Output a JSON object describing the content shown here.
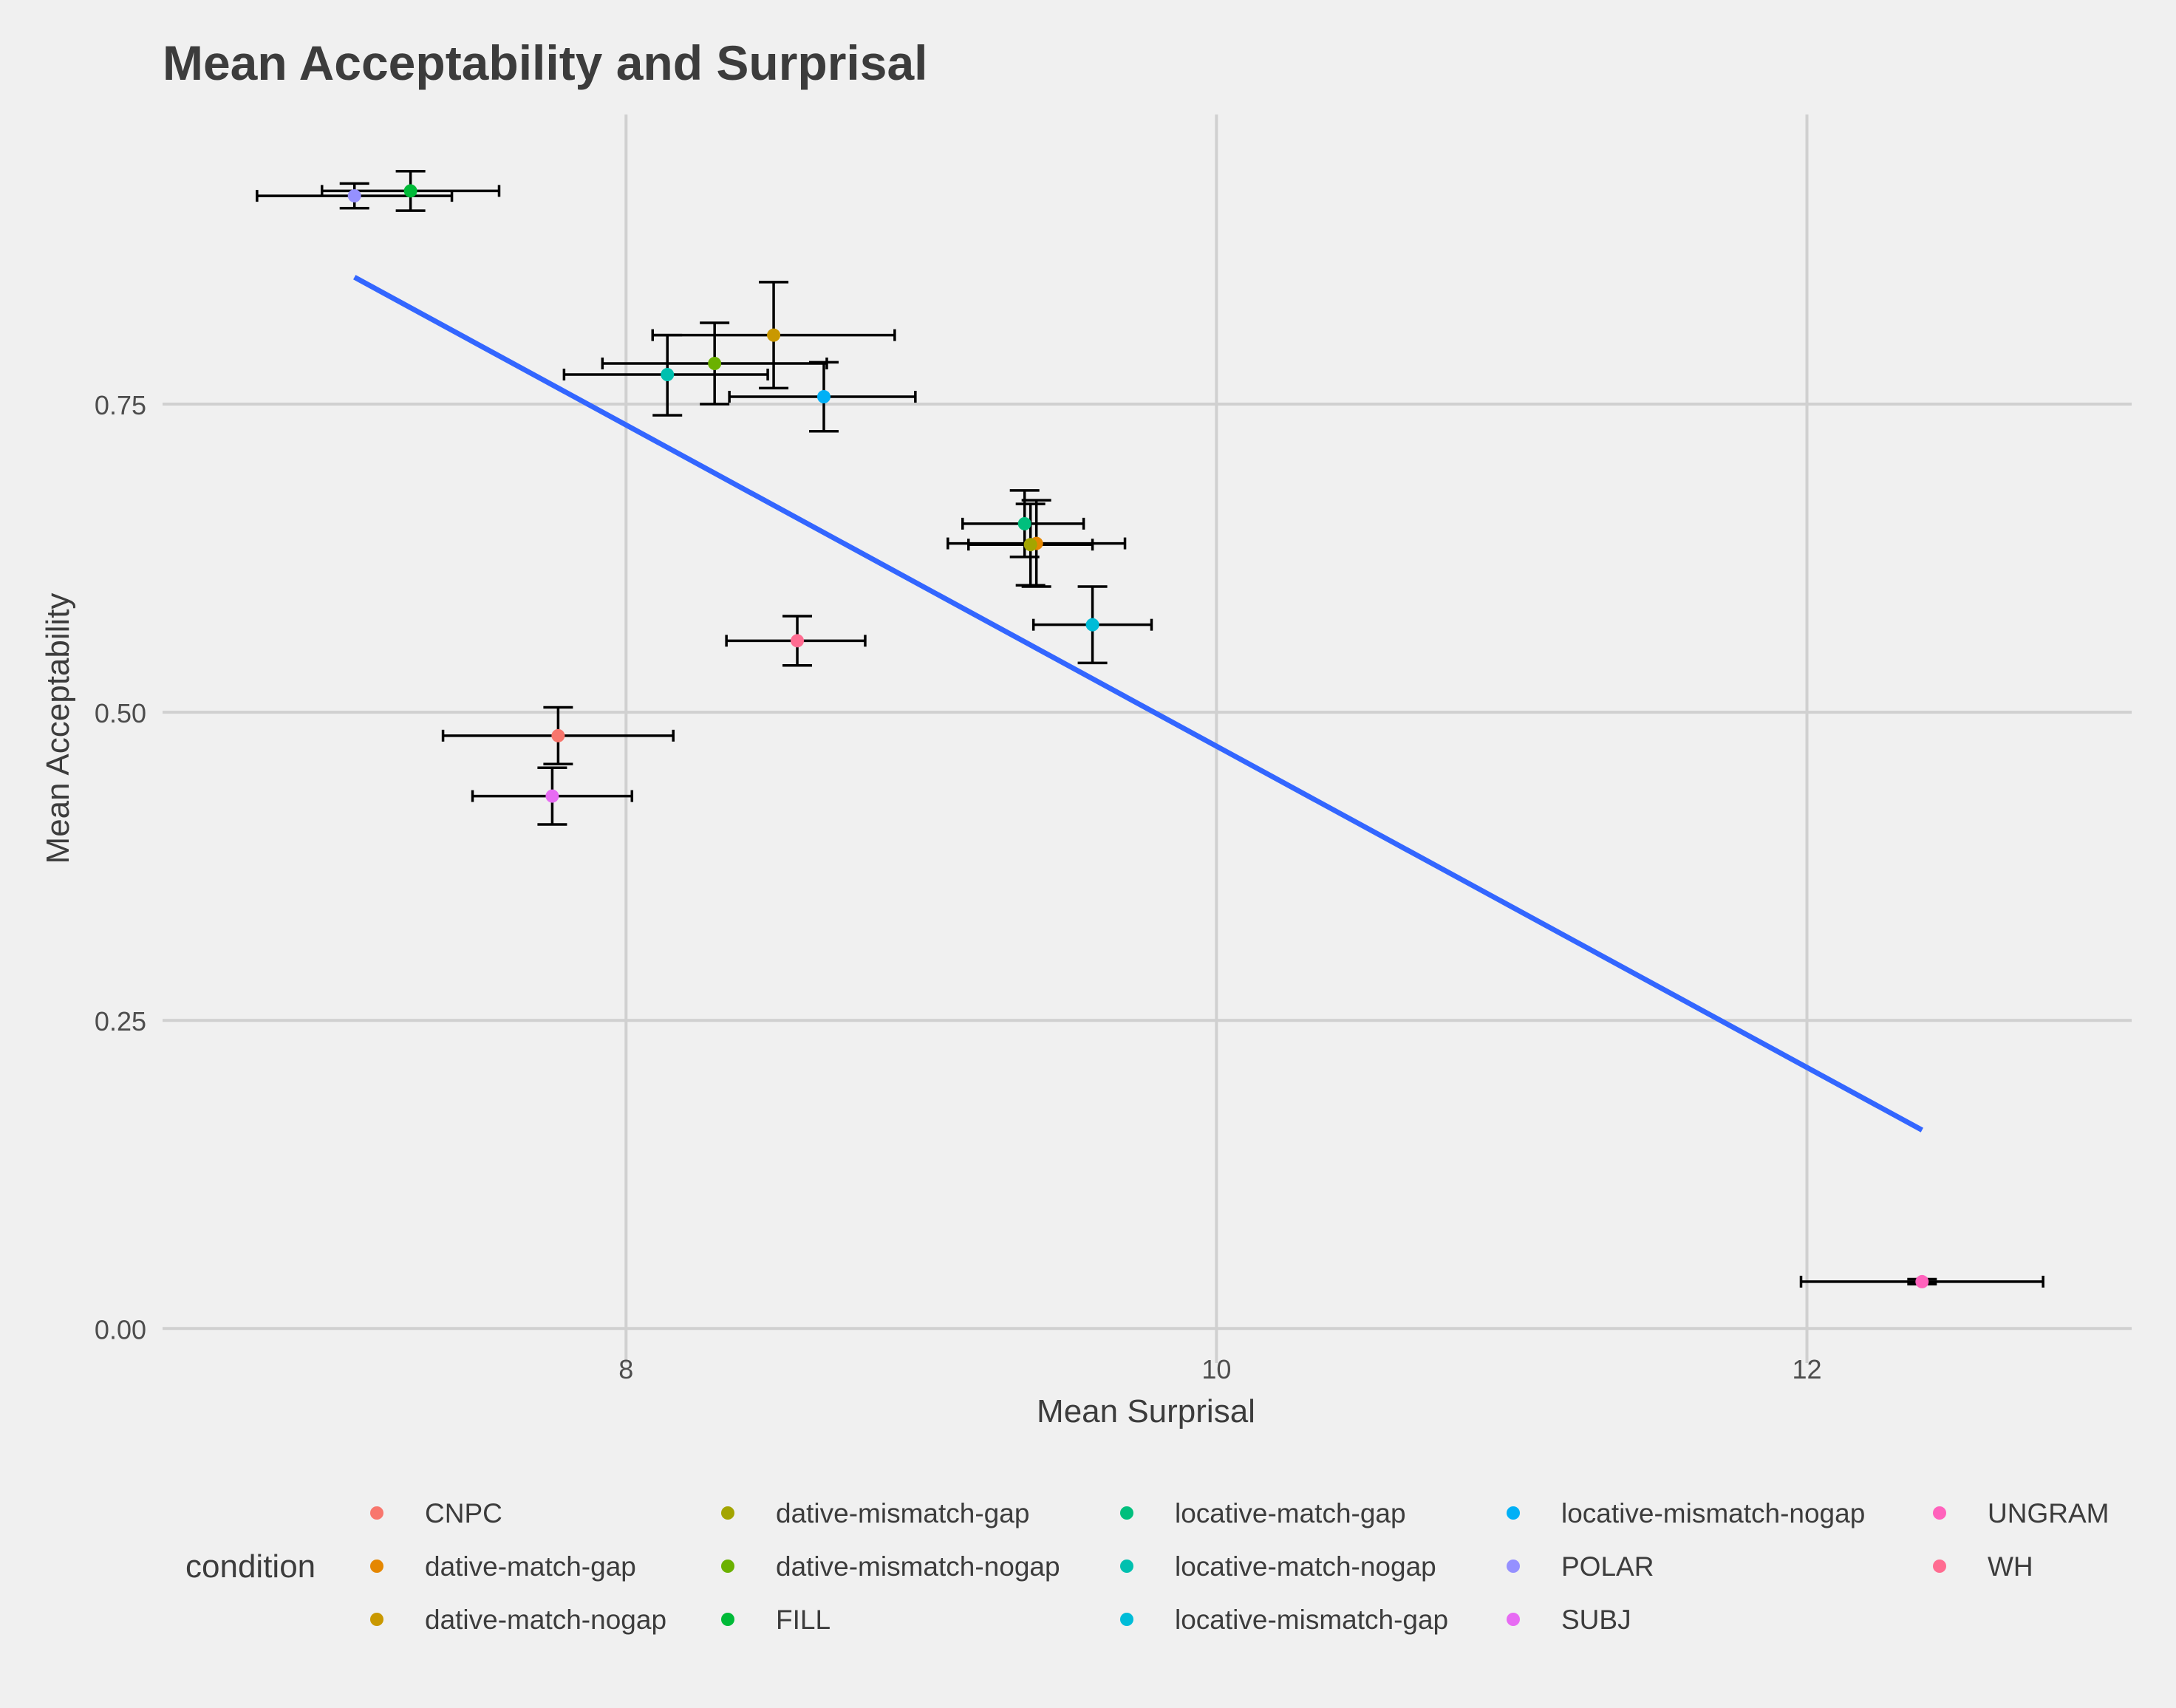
{
  "chart_data": {
    "type": "scatter",
    "title": "Mean Acceptability and Surprisal",
    "xlabel": "Mean Surprisal",
    "ylabel": "Mean Acceptability",
    "xlim": [
      6.43,
      13.1
    ],
    "ylim": [
      -0.028,
      0.985
    ],
    "x_ticks": [
      8,
      10,
      12
    ],
    "x_tick_labels": [
      "8",
      "10",
      "12"
    ],
    "y_ticks": [
      0,
      0.25,
      0.5,
      0.75
    ],
    "y_tick_labels": [
      "0.00",
      "0.25",
      "0.50",
      "0.75"
    ],
    "grid": true,
    "legend": {
      "position": "bottom",
      "title": "condition",
      "columns": [
        [
          "CNPC",
          "dative-match-gap",
          "dative-match-nogap"
        ],
        [
          "dative-mismatch-gap",
          "dative-mismatch-nogap",
          "FILL"
        ],
        [
          "locative-match-gap",
          "locative-match-nogap",
          "locative-mismatch-gap"
        ],
        [
          "locative-mismatch-nogap",
          "POLAR",
          "SUBJ"
        ],
        [
          "UNGRAM",
          "WH"
        ]
      ]
    },
    "colors": {
      "CNPC": "#F8766D",
      "dative-match-gap": "#E58700",
      "dative-match-nogap": "#C99800",
      "dative-mismatch-gap": "#A3A500",
      "dative-mismatch-nogap": "#6BB100",
      "FILL": "#00BA38",
      "locative-match-gap": "#00BF7D",
      "locative-match-nogap": "#00C0AF",
      "locative-mismatch-gap": "#00BCD8",
      "locative-mismatch-nogap": "#00B0F6",
      "POLAR": "#9590FF",
      "SUBJ": "#E76BF3",
      "UNGRAM": "#FF62BC",
      "WH": "#FF6C91"
    },
    "points": [
      {
        "condition": "CNPC",
        "x": 7.77,
        "y": 0.481,
        "x_low": 7.38,
        "x_high": 8.16,
        "y_low": 0.458,
        "y_high": 0.504
      },
      {
        "condition": "dative-match-gap",
        "x": 9.39,
        "y": 0.637,
        "x_low": 9.09,
        "x_high": 9.69,
        "y_low": 0.602,
        "y_high": 0.672
      },
      {
        "condition": "dative-match-nogap",
        "x": 8.5,
        "y": 0.806,
        "x_low": 8.09,
        "x_high": 8.91,
        "y_low": 0.763,
        "y_high": 0.849
      },
      {
        "condition": "dative-mismatch-gap",
        "x": 9.37,
        "y": 0.636,
        "x_low": 9.16,
        "x_high": 9.58,
        "y_low": 0.603,
        "y_high": 0.669
      },
      {
        "condition": "dative-mismatch-nogap",
        "x": 8.3,
        "y": 0.783,
        "x_low": 7.92,
        "x_high": 8.68,
        "y_low": 0.75,
        "y_high": 0.816
      },
      {
        "condition": "FILL",
        "x": 7.27,
        "y": 0.923,
        "x_low": 6.97,
        "x_high": 7.57,
        "y_low": 0.907,
        "y_high": 0.939
      },
      {
        "condition": "locative-match-gap",
        "x": 9.35,
        "y": 0.653,
        "x_low": 9.14,
        "x_high": 9.55,
        "y_low": 0.626,
        "y_high": 0.68
      },
      {
        "condition": "locative-match-nogap",
        "x": 8.14,
        "y": 0.774,
        "x_low": 7.79,
        "x_high": 8.48,
        "y_low": 0.741,
        "y_high": 0.806
      },
      {
        "condition": "locative-mismatch-gap",
        "x": 9.58,
        "y": 0.571,
        "x_low": 9.38,
        "x_high": 9.78,
        "y_low": 0.54,
        "y_high": 0.602
      },
      {
        "condition": "locative-mismatch-nogap",
        "x": 8.67,
        "y": 0.756,
        "x_low": 8.35,
        "x_high": 8.98,
        "y_low": 0.728,
        "y_high": 0.784
      },
      {
        "condition": "POLAR",
        "x": 7.08,
        "y": 0.919,
        "x_low": 6.75,
        "x_high": 7.41,
        "y_low": 0.909,
        "y_high": 0.929
      },
      {
        "condition": "SUBJ",
        "x": 7.75,
        "y": 0.432,
        "x_low": 7.48,
        "x_high": 8.02,
        "y_low": 0.409,
        "y_high": 0.455
      },
      {
        "condition": "UNGRAM",
        "x": 12.39,
        "y": 0.038,
        "x_low": 11.98,
        "x_high": 12.8,
        "y_low": 0.036,
        "y_high": 0.04
      },
      {
        "condition": "WH",
        "x": 8.58,
        "y": 0.558,
        "x_low": 8.34,
        "x_high": 8.81,
        "y_low": 0.538,
        "y_high": 0.578
      }
    ],
    "fit_line": {
      "color": "#3366FF",
      "x": [
        7.08,
        12.39
      ],
      "y": [
        0.853,
        0.161
      ]
    }
  }
}
